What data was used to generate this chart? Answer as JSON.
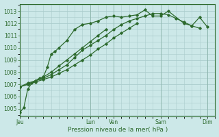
{
  "title": "",
  "xlabel": "Pression niveau de la mer( hPa )",
  "ylabel": "",
  "bg_color": "#cce8e8",
  "grid_color": "#aacccc",
  "line_color": "#2d6a2d",
  "ylim": [
    1004.4,
    1013.6
  ],
  "yticks": [
    1005,
    1006,
    1007,
    1008,
    1009,
    1010,
    1011,
    1012,
    1013
  ],
  "day_labels": [
    "Jeu",
    "Lun",
    "Ven",
    "Sam",
    "Dim"
  ],
  "day_positions": [
    0,
    36,
    48,
    72,
    96
  ],
  "xlim": [
    0,
    100
  ],
  "series1_x": [
    0,
    2,
    4,
    6,
    8,
    10,
    12,
    14,
    16,
    18,
    20,
    24,
    28,
    32,
    36,
    40,
    44,
    48,
    52,
    56,
    60,
    64,
    68,
    72,
    76,
    84,
    88,
    92,
    96
  ],
  "series1_y": [
    1004.7,
    1005.1,
    1006.6,
    1007.1,
    1007.3,
    1007.5,
    1007.6,
    1008.4,
    1009.5,
    1009.7,
    1010.0,
    1010.6,
    1011.5,
    1011.9,
    1012.0,
    1012.2,
    1012.5,
    1012.6,
    1012.5,
    1012.6,
    1012.7,
    1013.1,
    1012.6,
    1012.6,
    1013.0,
    1012.0,
    1011.8,
    1012.5,
    1011.7
  ],
  "series2_x": [
    0,
    4,
    8,
    12,
    16,
    20,
    24,
    28,
    32,
    36,
    40,
    44,
    48,
    52,
    56,
    60,
    64,
    68,
    72,
    76,
    80,
    84,
    88,
    92
  ],
  "series2_y": [
    1006.8,
    1007.1,
    1007.3,
    1007.5,
    1007.8,
    1008.2,
    1008.6,
    1009.2,
    1009.8,
    1010.2,
    1010.6,
    1011.0,
    1011.5,
    1011.9,
    1012.2,
    1012.4,
    1012.6,
    1012.8,
    1012.8,
    1012.7,
    1012.4,
    1012.1,
    1011.8,
    1011.6
  ],
  "series3_x": [
    0,
    4,
    8,
    12,
    16,
    20,
    24,
    28,
    32,
    36,
    40,
    44,
    48,
    52,
    56,
    60
  ],
  "series3_y": [
    1006.8,
    1007.0,
    1007.2,
    1007.4,
    1007.6,
    1007.9,
    1008.2,
    1008.6,
    1009.0,
    1009.4,
    1009.9,
    1010.3,
    1010.8,
    1011.2,
    1011.6,
    1012.0
  ],
  "series4_x": [
    0,
    4,
    8,
    12,
    16,
    20,
    24,
    28,
    32,
    36,
    40,
    44
  ],
  "series4_y": [
    1006.8,
    1007.0,
    1007.3,
    1007.6,
    1008.0,
    1008.5,
    1009.0,
    1009.5,
    1010.0,
    1010.5,
    1011.0,
    1011.5
  ]
}
